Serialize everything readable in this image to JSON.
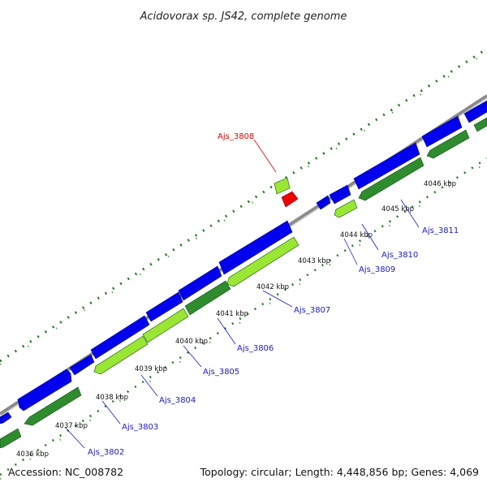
{
  "title": "Acidovorax sp. JS42, complete genome",
  "footer": {
    "accession": "Accession: NC_008782",
    "summary": "Topology: circular; Length: 4,448,856 bp; Genes: 4,069"
  },
  "colors": {
    "backbone": "#8a8a8a",
    "forward_cds": "#0000ee",
    "reverse_cds": "#2e8b2e",
    "highlight_cds": "#99e633",
    "selected_gene": "#ee0000",
    "gene_label": "#1a1acc",
    "selected_label": "#dd0000",
    "tick": "#1f7a1f"
  },
  "scale_labels": [
    "4036 kbp",
    "4037 kbp",
    "4038 kbp",
    "4039 kbp",
    "4040 kbp",
    "4041 kbp",
    "4042 kbp",
    "4043 kbp",
    "4044 kbp",
    "4045 kbp",
    "4046 kbp"
  ],
  "gene_labels": [
    {
      "name": "Ajs_3802",
      "selected": false
    },
    {
      "name": "Ajs_3803",
      "selected": false
    },
    {
      "name": "Ajs_3804",
      "selected": false
    },
    {
      "name": "Ajs_3805",
      "selected": false
    },
    {
      "name": "Ajs_3806",
      "selected": false
    },
    {
      "name": "Ajs_3807",
      "selected": false
    },
    {
      "name": "Ajs_3808",
      "selected": true
    },
    {
      "name": "Ajs_3809",
      "selected": false
    },
    {
      "name": "Ajs_3810",
      "selected": false
    },
    {
      "name": "Ajs_3811",
      "selected": false
    }
  ]
}
